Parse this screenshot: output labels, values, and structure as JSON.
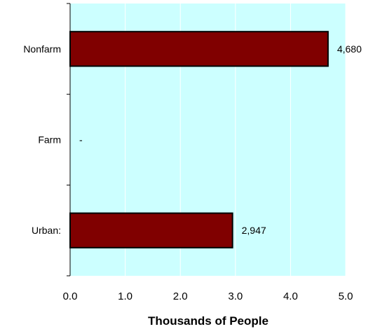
{
  "chart_data": {
    "type": "bar",
    "orientation": "horizontal",
    "categories": [
      "Nonfarm",
      "Farm",
      "Urban:"
    ],
    "values": [
      4.68,
      0,
      2.947
    ],
    "data_labels": [
      "4,680",
      "-",
      "2,947"
    ],
    "xlabel": "Thousands of People",
    "ylabel": "",
    "title": "",
    "xlim": [
      0,
      5
    ],
    "xticks": [
      0,
      1,
      2,
      3,
      4,
      5
    ],
    "xtick_labels": [
      "0.0",
      "1.0",
      "2.0",
      "3.0",
      "4.0",
      "5.0"
    ],
    "grid": "vertical",
    "colors": {
      "plot_background": "#ccffff",
      "bar_fill": "#800000",
      "bar_stroke": "#000000",
      "gridline": "#ffffff"
    }
  }
}
